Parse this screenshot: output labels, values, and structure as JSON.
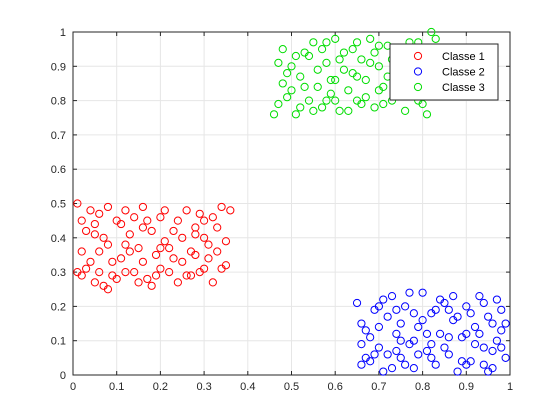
{
  "chart_data": {
    "type": "scatter",
    "xlim": [
      0,
      1
    ],
    "ylim": [
      0,
      1
    ],
    "xticks": [
      0,
      0.1,
      0.2,
      0.3,
      0.4,
      0.5,
      0.6,
      0.7,
      0.8,
      0.9,
      1
    ],
    "yticks": [
      0,
      0.1,
      0.2,
      0.3,
      0.4,
      0.5,
      0.6,
      0.7,
      0.8,
      0.9,
      1
    ],
    "xtick_labels": [
      "0",
      "0.1",
      "0.2",
      "0.3",
      "0.4",
      "0.5",
      "0.6",
      "0.7",
      "0.8",
      "0.9",
      "1"
    ],
    "ytick_labels": [
      "0",
      "0.1",
      "0.2",
      "0.3",
      "0.4",
      "0.5",
      "0.6",
      "0.7",
      "0.8",
      "0.9",
      "1"
    ],
    "grid": true,
    "legend_position": "top-right",
    "marker": "open-circle",
    "series": [
      {
        "name": "Classe 1",
        "color": "#ff0000",
        "points": [
          [
            0.01,
            0.5
          ],
          [
            0.02,
            0.45
          ],
          [
            0.03,
            0.42
          ],
          [
            0.01,
            0.3
          ],
          [
            0.02,
            0.29
          ],
          [
            0.04,
            0.33
          ],
          [
            0.05,
            0.27
          ],
          [
            0.06,
            0.36
          ],
          [
            0.07,
            0.26
          ],
          [
            0.08,
            0.25
          ],
          [
            0.09,
            0.29
          ],
          [
            0.05,
            0.41
          ],
          [
            0.06,
            0.47
          ],
          [
            0.08,
            0.49
          ],
          [
            0.1,
            0.45
          ],
          [
            0.11,
            0.34
          ],
          [
            0.12,
            0.48
          ],
          [
            0.13,
            0.41
          ],
          [
            0.14,
            0.3
          ],
          [
            0.15,
            0.37
          ],
          [
            0.16,
            0.43
          ],
          [
            0.17,
            0.28
          ],
          [
            0.18,
            0.26
          ],
          [
            0.19,
            0.35
          ],
          [
            0.2,
            0.46
          ],
          [
            0.21,
            0.39
          ],
          [
            0.22,
            0.3
          ],
          [
            0.23,
            0.42
          ],
          [
            0.24,
            0.27
          ],
          [
            0.25,
            0.33
          ],
          [
            0.26,
            0.48
          ],
          [
            0.27,
            0.36
          ],
          [
            0.28,
            0.41
          ],
          [
            0.29,
            0.3
          ],
          [
            0.3,
            0.45
          ],
          [
            0.31,
            0.38
          ],
          [
            0.32,
            0.27
          ],
          [
            0.33,
            0.43
          ],
          [
            0.34,
            0.49
          ],
          [
            0.35,
            0.32
          ],
          [
            0.36,
            0.48
          ],
          [
            0.35,
            0.39
          ],
          [
            0.34,
            0.31
          ],
          [
            0.33,
            0.36
          ],
          [
            0.02,
            0.36
          ],
          [
            0.03,
            0.31
          ],
          [
            0.04,
            0.48
          ],
          [
            0.07,
            0.4
          ],
          [
            0.09,
            0.33
          ],
          [
            0.11,
            0.44
          ],
          [
            0.12,
            0.3
          ],
          [
            0.14,
            0.46
          ],
          [
            0.16,
            0.33
          ],
          [
            0.18,
            0.42
          ],
          [
            0.2,
            0.31
          ],
          [
            0.22,
            0.37
          ],
          [
            0.24,
            0.45
          ],
          [
            0.26,
            0.29
          ],
          [
            0.28,
            0.35
          ],
          [
            0.3,
            0.4
          ],
          [
            0.32,
            0.46
          ],
          [
            0.1,
            0.28
          ],
          [
            0.13,
            0.36
          ],
          [
            0.15,
            0.27
          ],
          [
            0.17,
            0.45
          ],
          [
            0.19,
            0.29
          ],
          [
            0.21,
            0.48
          ],
          [
            0.23,
            0.34
          ],
          [
            0.25,
            0.4
          ],
          [
            0.27,
            0.29
          ],
          [
            0.29,
            0.47
          ],
          [
            0.31,
            0.34
          ],
          [
            0.06,
            0.3
          ],
          [
            0.08,
            0.38
          ],
          [
            0.12,
            0.38
          ],
          [
            0.2,
            0.37
          ],
          [
            0.3,
            0.31
          ],
          [
            0.05,
            0.44
          ],
          [
            0.16,
            0.49
          ],
          [
            0.28,
            0.43
          ]
        ]
      },
      {
        "name": "Classe 2",
        "color": "#0000ff",
        "points": [
          [
            0.65,
            0.21
          ],
          [
            0.66,
            0.15
          ],
          [
            0.67,
            0.05
          ],
          [
            0.66,
            0.03
          ],
          [
            0.68,
            0.11
          ],
          [
            0.69,
            0.19
          ],
          [
            0.7,
            0.08
          ],
          [
            0.71,
            0.01
          ],
          [
            0.72,
            0.17
          ],
          [
            0.73,
            0.23
          ],
          [
            0.74,
            0.12
          ],
          [
            0.75,
            0.05
          ],
          [
            0.76,
            0.2
          ],
          [
            0.77,
            0.09
          ],
          [
            0.78,
            0.02
          ],
          [
            0.79,
            0.14
          ],
          [
            0.8,
            0.24
          ],
          [
            0.81,
            0.07
          ],
          [
            0.82,
            0.18
          ],
          [
            0.83,
            0.03
          ],
          [
            0.84,
            0.12
          ],
          [
            0.85,
            0.21
          ],
          [
            0.86,
            0.06
          ],
          [
            0.87,
            0.16
          ],
          [
            0.88,
            0.01
          ],
          [
            0.89,
            0.11
          ],
          [
            0.9,
            0.2
          ],
          [
            0.91,
            0.04
          ],
          [
            0.92,
            0.14
          ],
          [
            0.93,
            0.23
          ],
          [
            0.94,
            0.08
          ],
          [
            0.95,
            0.17
          ],
          [
            0.96,
            0.02
          ],
          [
            0.97,
            0.1
          ],
          [
            0.98,
            0.19
          ],
          [
            0.99,
            0.05
          ],
          [
            0.98,
            0.13
          ],
          [
            0.97,
            0.22
          ],
          [
            0.96,
            0.07
          ],
          [
            0.95,
            0.01
          ],
          [
            0.68,
            0.04
          ],
          [
            0.7,
            0.14
          ],
          [
            0.72,
            0.06
          ],
          [
            0.74,
            0.19
          ],
          [
            0.76,
            0.03
          ],
          [
            0.78,
            0.1
          ],
          [
            0.8,
            0.16
          ],
          [
            0.82,
            0.05
          ],
          [
            0.84,
            0.22
          ],
          [
            0.86,
            0.11
          ],
          [
            0.88,
            0.17
          ],
          [
            0.9,
            0.03
          ],
          [
            0.92,
            0.09
          ],
          [
            0.94,
            0.21
          ],
          [
            0.96,
            0.15
          ],
          [
            0.67,
            0.13
          ],
          [
            0.69,
            0.06
          ],
          [
            0.71,
            0.22
          ],
          [
            0.73,
            0.02
          ],
          [
            0.75,
            0.15
          ],
          [
            0.77,
            0.24
          ],
          [
            0.79,
            0.06
          ],
          [
            0.81,
            0.12
          ],
          [
            0.83,
            0.19
          ],
          [
            0.85,
            0.08
          ],
          [
            0.87,
            0.23
          ],
          [
            0.89,
            0.04
          ],
          [
            0.91,
            0.18
          ],
          [
            0.93,
            0.12
          ],
          [
            0.99,
            0.15
          ],
          [
            0.66,
            0.09
          ],
          [
            0.7,
            0.2
          ],
          [
            0.74,
            0.07
          ],
          [
            0.78,
            0.18
          ],
          [
            0.82,
            0.09
          ],
          [
            0.86,
            0.19
          ],
          [
            0.9,
            0.12
          ],
          [
            0.94,
            0.03
          ],
          [
            0.98,
            0.08
          ],
          [
            0.75,
            0.1
          ]
        ]
      },
      {
        "name": "Classe 3",
        "color": "#00dd00",
        "points": [
          [
            0.46,
            0.76
          ],
          [
            0.47,
            0.79
          ],
          [
            0.48,
            0.85
          ],
          [
            0.48,
            0.95
          ],
          [
            0.49,
            0.81
          ],
          [
            0.5,
            0.9
          ],
          [
            0.51,
            0.76
          ],
          [
            0.52,
            0.87
          ],
          [
            0.53,
            0.94
          ],
          [
            0.54,
            0.8
          ],
          [
            0.55,
            0.97
          ],
          [
            0.56,
            0.84
          ],
          [
            0.57,
            0.78
          ],
          [
            0.58,
            0.91
          ],
          [
            0.59,
            0.86
          ],
          [
            0.6,
            0.98
          ],
          [
            0.61,
            0.77
          ],
          [
            0.62,
            0.89
          ],
          [
            0.63,
            0.83
          ],
          [
            0.64,
            0.95
          ],
          [
            0.65,
            0.8
          ],
          [
            0.66,
            0.92
          ],
          [
            0.67,
            0.86
          ],
          [
            0.68,
            0.98
          ],
          [
            0.69,
            0.78
          ],
          [
            0.7,
            0.9
          ],
          [
            0.71,
            0.84
          ],
          [
            0.72,
            0.96
          ],
          [
            0.73,
            0.8
          ],
          [
            0.74,
            0.88
          ],
          [
            0.75,
            0.94
          ],
          [
            0.76,
            0.77
          ],
          [
            0.77,
            0.91
          ],
          [
            0.78,
            0.83
          ],
          [
            0.79,
            0.97
          ],
          [
            0.8,
            0.79
          ],
          [
            0.81,
            0.87
          ],
          [
            0.82,
            0.93
          ],
          [
            0.83,
            0.85
          ],
          [
            0.83,
            0.98
          ],
          [
            0.82,
            1.0
          ],
          [
            0.5,
            0.83
          ],
          [
            0.52,
            0.78
          ],
          [
            0.54,
            0.93
          ],
          [
            0.56,
            0.89
          ],
          [
            0.58,
            0.8
          ],
          [
            0.6,
            0.86
          ],
          [
            0.62,
            0.94
          ],
          [
            0.64,
            0.88
          ],
          [
            0.66,
            0.79
          ],
          [
            0.68,
            0.91
          ],
          [
            0.7,
            0.96
          ],
          [
            0.72,
            0.87
          ],
          [
            0.74,
            0.82
          ],
          [
            0.76,
            0.95
          ],
          [
            0.78,
            0.89
          ],
          [
            0.8,
            0.84
          ],
          [
            0.49,
            0.88
          ],
          [
            0.51,
            0.93
          ],
          [
            0.53,
            0.84
          ],
          [
            0.55,
            0.77
          ],
          [
            0.57,
            0.95
          ],
          [
            0.59,
            0.82
          ],
          [
            0.61,
            0.92
          ],
          [
            0.63,
            0.77
          ],
          [
            0.65,
            0.97
          ],
          [
            0.67,
            0.81
          ],
          [
            0.69,
            0.94
          ],
          [
            0.71,
            0.79
          ],
          [
            0.73,
            0.92
          ],
          [
            0.75,
            0.85
          ],
          [
            0.77,
            0.97
          ],
          [
            0.79,
            0.8
          ],
          [
            0.81,
            0.76
          ],
          [
            0.47,
            0.91
          ],
          [
            0.6,
            0.8
          ],
          [
            0.65,
            0.87
          ],
          [
            0.7,
            0.83
          ],
          [
            0.8,
            0.95
          ],
          [
            0.58,
            0.97
          ]
        ]
      }
    ]
  }
}
